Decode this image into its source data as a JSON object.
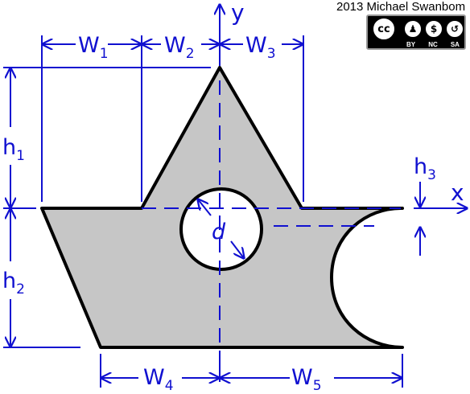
{
  "credit": {
    "text": "2013 Michael Swanbom"
  },
  "license": {
    "cc": "cc",
    "icons": [
      "by-icon",
      "nc-icon",
      "sa-icon"
    ],
    "labels": [
      "BY",
      "NC",
      "SA"
    ]
  },
  "axes": {
    "x_label": "x",
    "y_label": "y"
  },
  "dimensions": {
    "w1": {
      "main": "W",
      "sub": "1"
    },
    "w2": {
      "main": "W",
      "sub": "2"
    },
    "w3": {
      "main": "W",
      "sub": "3"
    },
    "w4": {
      "main": "W",
      "sub": "4"
    },
    "w5": {
      "main": "W",
      "sub": "5"
    },
    "h1": {
      "main": "h",
      "sub": "1"
    },
    "h2": {
      "main": "h",
      "sub": "2"
    },
    "h3": {
      "main": "h",
      "sub": "3"
    },
    "d": {
      "main": "d"
    }
  },
  "colors": {
    "shape_fill": "#c6c6c6",
    "dimension": "#1010d0",
    "outline": "#000000"
  }
}
